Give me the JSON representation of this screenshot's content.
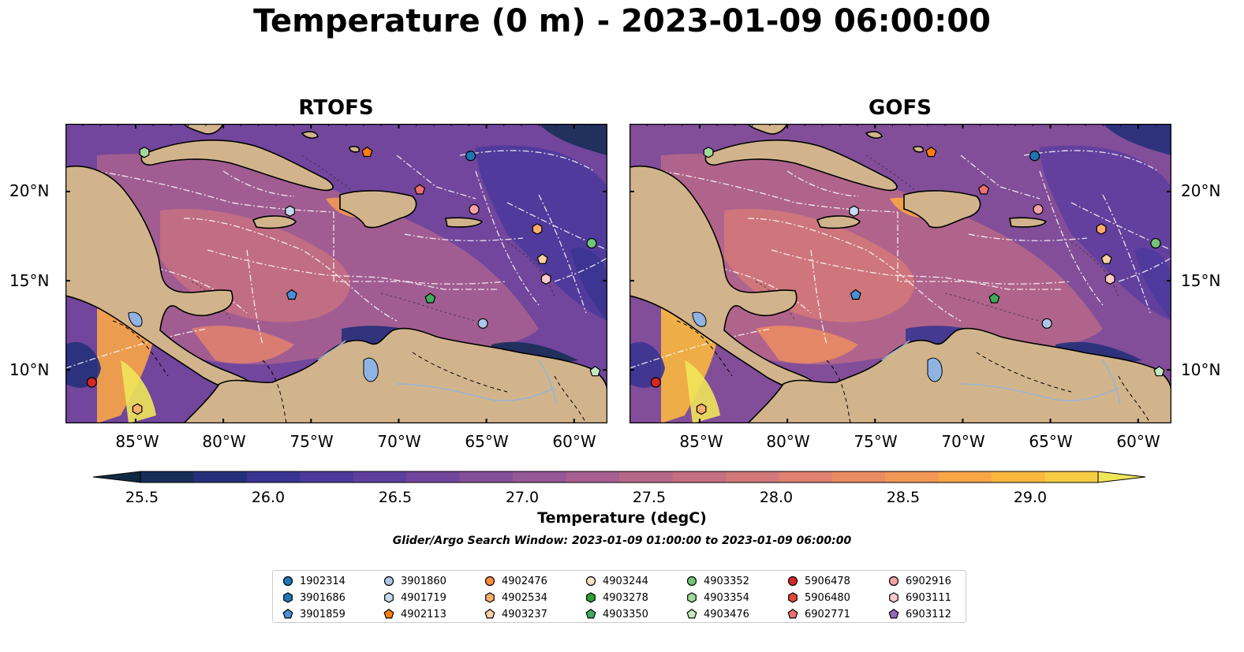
{
  "title": "Temperature (0 m) - 2023-01-09 06:00:00",
  "panels": [
    {
      "title": "RTOFS"
    },
    {
      "title": "GOFS"
    }
  ],
  "lon_labels": [
    "85°W",
    "80°W",
    "75°W",
    "70°W",
    "65°W",
    "60°W"
  ],
  "lat_labels": [
    "20°N",
    "15°N",
    "10°N"
  ],
  "colorbar": {
    "label": "Temperature (degC)",
    "ticks": [
      "25.5",
      "26.0",
      "26.5",
      "27.0",
      "27.5",
      "28.0",
      "28.5",
      "29.0"
    ],
    "colors": [
      "#0f2a40",
      "#182d57",
      "#25307a",
      "#3a3591",
      "#4c3a9c",
      "#5f3f9e",
      "#71469c",
      "#844f99",
      "#955795",
      "#a65f90",
      "#b5678a",
      "#c46f82",
      "#d2787a",
      "#df8170",
      "#ea8b63",
      "#f39755",
      "#f8a546",
      "#f9b83d",
      "#f6cd45",
      "#f0e65a"
    ]
  },
  "search_window": "Glider/Argo Search Window: 2023-01-09 01:00:00 to 2023-01-09 06:00:00",
  "legend": [
    {
      "id": "1902314",
      "marker": "circle",
      "color": "#1f77b4"
    },
    {
      "id": "3901686",
      "marker": "hexagon",
      "color": "#1f77b4"
    },
    {
      "id": "3901859",
      "marker": "pentagon",
      "color": "#4a90d9"
    },
    {
      "id": "3901860",
      "marker": "circle",
      "color": "#aec7e8"
    },
    {
      "id": "4901719",
      "marker": "hexagon",
      "color": "#c6dbef"
    },
    {
      "id": "4902113",
      "marker": "pentagon",
      "color": "#ff7f0e"
    },
    {
      "id": "4902476",
      "marker": "circle",
      "color": "#fd8d3c"
    },
    {
      "id": "4902534",
      "marker": "hexagon",
      "color": "#fdae6b"
    },
    {
      "id": "4903237",
      "marker": "pentagon",
      "color": "#fdd0a2"
    },
    {
      "id": "4903244",
      "marker": "circle",
      "color": "#fde0c5"
    },
    {
      "id": "4903278",
      "marker": "hexagon",
      "color": "#2ca02c"
    },
    {
      "id": "4903350",
      "marker": "pentagon",
      "color": "#41ab5d"
    },
    {
      "id": "4903352",
      "marker": "circle",
      "color": "#74c476"
    },
    {
      "id": "4903354",
      "marker": "hexagon",
      "color": "#a1d99b"
    },
    {
      "id": "4903476",
      "marker": "pentagon",
      "color": "#c7e9c0"
    },
    {
      "id": "5906478",
      "marker": "circle",
      "color": "#d62728"
    },
    {
      "id": "5906480",
      "marker": "hexagon",
      "color": "#e34a33"
    },
    {
      "id": "6902771",
      "marker": "pentagon",
      "color": "#f07070"
    },
    {
      "id": "6902916",
      "marker": "circle",
      "color": "#f4a3a3"
    },
    {
      "id": "6903111",
      "marker": "hexagon",
      "color": "#fbcaca"
    },
    {
      "id": "6903112",
      "marker": "pentagon",
      "color": "#9467bd"
    }
  ],
  "platforms": [
    {
      "id": "4903354",
      "lon": -84.5,
      "lat": 22.2
    },
    {
      "id": "4902113",
      "lon": -71.8,
      "lat": 22.2
    },
    {
      "id": "1902314",
      "lon": -65.9,
      "lat": 22.0
    },
    {
      "id": "6902771",
      "lon": -68.8,
      "lat": 20.1
    },
    {
      "id": "4901719",
      "lon": -76.2,
      "lat": 18.9
    },
    {
      "id": "6902916",
      "lon": -65.7,
      "lat": 19.0
    },
    {
      "id": "4902534",
      "lon": -62.1,
      "lat": 17.9
    },
    {
      "id": "4903352",
      "lon": -59.0,
      "lat": 17.1
    },
    {
      "id": "4903237",
      "lon": -61.8,
      "lat": 16.2
    },
    {
      "id": "6903111",
      "lon": -61.6,
      "lat": 15.1
    },
    {
      "id": "3901859",
      "lon": -76.1,
      "lat": 14.2
    },
    {
      "id": "4903350",
      "lon": -68.2,
      "lat": 14.0
    },
    {
      "id": "3901860",
      "lon": -65.2,
      "lat": 12.6
    },
    {
      "id": "5906478",
      "lon": -87.5,
      "lat": 9.3
    },
    {
      "id": "4903476",
      "lon": -58.8,
      "lat": 9.9
    },
    {
      "id": "4902534",
      "lon": -84.9,
      "lat": 7.8
    }
  ]
}
